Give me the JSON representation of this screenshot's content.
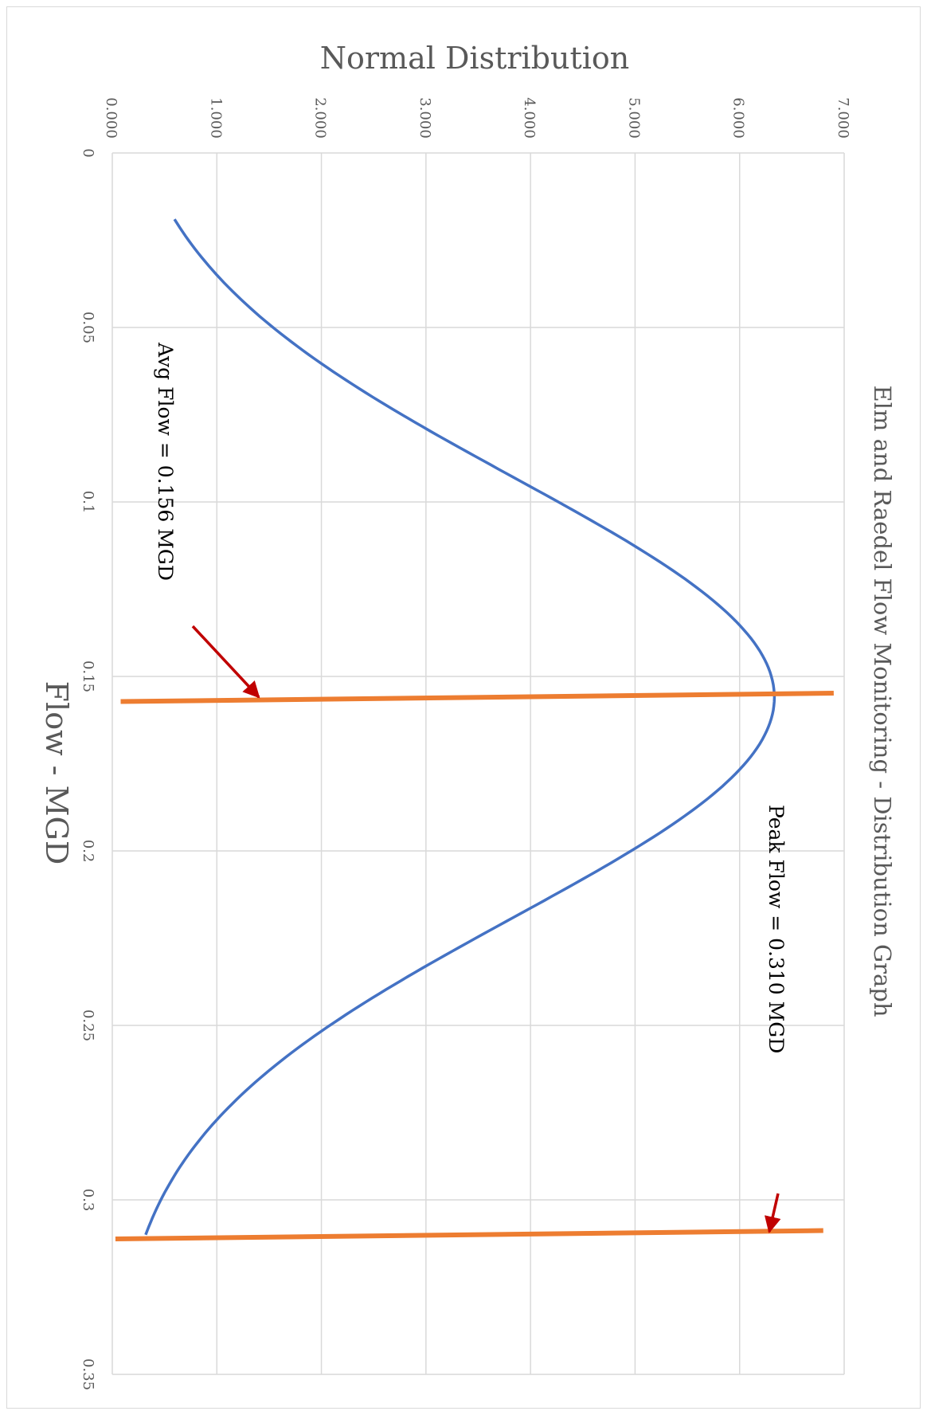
{
  "chart_data": {
    "type": "line",
    "title": "Elm and Raedel Flow Monitoring - Distribution Graph",
    "xlabel": "Flow - MGD",
    "ylabel": "Normal Distribution",
    "xlim": [
      0,
      0.35
    ],
    "ylim": [
      0,
      7
    ],
    "x_ticks": [
      "0",
      "0.05",
      "0.1",
      "0.15",
      "0.2",
      "0.25",
      "0.3",
      "0.35"
    ],
    "y_ticks": [
      "0.000",
      "1.000",
      "2.000",
      "3.000",
      "4.000",
      "5.000",
      "6.000",
      "7.000"
    ],
    "grid": true,
    "series": [
      {
        "color": "#4472c4",
        "mean": 0.156,
        "std_dev": 0.063,
        "x_range": [
          0.019,
          0.31
        ],
        "points": [
          [
            0.019,
            0.61
          ],
          [
            0.03,
            0.92
          ],
          [
            0.04,
            1.34
          ],
          [
            0.05,
            1.84
          ],
          [
            0.06,
            2.41
          ],
          [
            0.07,
            3.04
          ],
          [
            0.08,
            3.69
          ],
          [
            0.09,
            4.36
          ],
          [
            0.1,
            4.98
          ],
          [
            0.11,
            5.53
          ],
          [
            0.12,
            5.95
          ],
          [
            0.13,
            6.21
          ],
          [
            0.14,
            6.33
          ],
          [
            0.156,
            6.35
          ],
          [
            0.17,
            6.26
          ],
          [
            0.18,
            6.04
          ],
          [
            0.19,
            5.72
          ],
          [
            0.2,
            5.28
          ],
          [
            0.21,
            4.75
          ],
          [
            0.22,
            4.16
          ],
          [
            0.23,
            3.55
          ],
          [
            0.24,
            2.94
          ],
          [
            0.25,
            2.37
          ],
          [
            0.26,
            1.86
          ],
          [
            0.27,
            1.42
          ],
          [
            0.28,
            1.05
          ],
          [
            0.29,
            0.76
          ],
          [
            0.3,
            0.53
          ],
          [
            0.31,
            0.34
          ]
        ]
      }
    ],
    "reference_lines": [
      {
        "color": "#ed7d31",
        "x": 0.156,
        "y_range": [
          0.08,
          6.9
        ]
      },
      {
        "color": "#ed7d31",
        "x": 0.31,
        "y_range": [
          0.03,
          6.8
        ]
      }
    ],
    "annotations": [
      {
        "text": "Avg Flow = 0.156 MGD",
        "arrow_color": "#c00000"
      },
      {
        "text": "Peak Flow = 0.310 MGD",
        "arrow_color": "#c00000"
      }
    ]
  }
}
